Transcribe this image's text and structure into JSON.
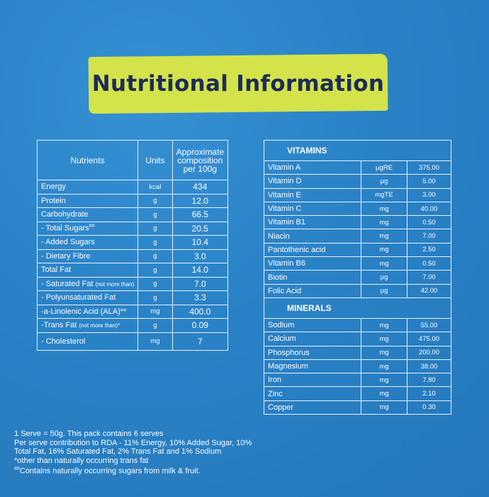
{
  "title": "Nutritional Information",
  "nutrition_table": {
    "headers": [
      "Nutrients",
      "Units",
      "Approximate composition per 100g"
    ],
    "rows": [
      {
        "nutrient": "Energy",
        "unit": "kcal",
        "value": "434"
      },
      {
        "nutrient": "Protein",
        "unit": "g",
        "value": "12.0"
      },
      {
        "nutrient": "Carbohydrate",
        "unit": "g",
        "value": "66.5"
      },
      {
        "nutrient": "- Total Sugars",
        "mark": "##",
        "unit": "g",
        "value": "20.5"
      },
      {
        "nutrient": "- Added Sugars",
        "unit": "g",
        "value": "10.4"
      },
      {
        "nutrient": "- Dietary Fibre",
        "unit": "g",
        "value": "3.0"
      },
      {
        "nutrient": "Total Fat",
        "unit": "g",
        "value": "14.0"
      },
      {
        "nutrient": "- Saturated Fat",
        "note": "(not more than)",
        "unit": "g",
        "value": "7.0"
      },
      {
        "nutrient": "- Polyunsaturated Fat",
        "unit": "g",
        "value": "3.3"
      },
      {
        "nutrient": "-a-Linolenic Acid (ALA)**",
        "unit": "mg",
        "value": "400.0"
      },
      {
        "nutrient": "-Trans Fat",
        "note": "(not more than)*",
        "unit": "g",
        "value": "0.09"
      },
      {
        "nutrient": "- Cholesterol",
        "unit": "mg",
        "value": "7"
      }
    ]
  },
  "vitamins": {
    "heading": "VITAMINS",
    "rows": [
      {
        "name": "Vitamin A",
        "unit": "µgRE",
        "value": "375.00"
      },
      {
        "name": "Vitamin D",
        "unit": "µg",
        "value": "5.00"
      },
      {
        "name": "Vitamin E",
        "unit": "mgTE",
        "value": "3.00"
      },
      {
        "name": "Vitamin C",
        "unit": "mg",
        "value": "40.00"
      },
      {
        "name": "Vitamin B1",
        "unit": "mg",
        "value": "0.50"
      },
      {
        "name": "Niacin",
        "unit": "mg",
        "value": "7.00"
      },
      {
        "name": "Pantothenic acid",
        "unit": "mg",
        "value": "2.50"
      },
      {
        "name": "Vitamin B6",
        "unit": "mg",
        "value": "0.50"
      },
      {
        "name": "Biotin",
        "unit": "µg",
        "value": "7.00"
      },
      {
        "name": "Folic Acid",
        "unit": "µg",
        "value": "42.00"
      }
    ]
  },
  "minerals": {
    "heading": "MINERALS",
    "rows": [
      {
        "name": "Sodium",
        "unit": "mg",
        "value": "55.00"
      },
      {
        "name": "Calcium",
        "unit": "mg",
        "value": "475.00"
      },
      {
        "name": "Phosphorus",
        "unit": "mg",
        "value": "200.00"
      },
      {
        "name": "Magnesium",
        "unit": "mg",
        "value": "38.00"
      },
      {
        "name": "Iron",
        "unit": "mg",
        "value": "7.80"
      },
      {
        "name": "Zinc",
        "unit": "mg",
        "value": "2.10"
      },
      {
        "name": "Copper",
        "unit": "mg",
        "value": "0.30"
      }
    ]
  },
  "footnotes": {
    "lines": [
      "1 Serve = 50g. This pack contains 6 serves",
      "Per serve contribution to RDA - 11% Energy, 10% Added Sugar, 10%",
      "Total Fat, 16% Saturated Fat, 2% Trans Fat and 1% Sodium",
      "*other than naturally occurring trans fat"
    ],
    "last_mark": "##",
    "last_text": "Contains naturally occurring sugars from milk & fruit."
  }
}
